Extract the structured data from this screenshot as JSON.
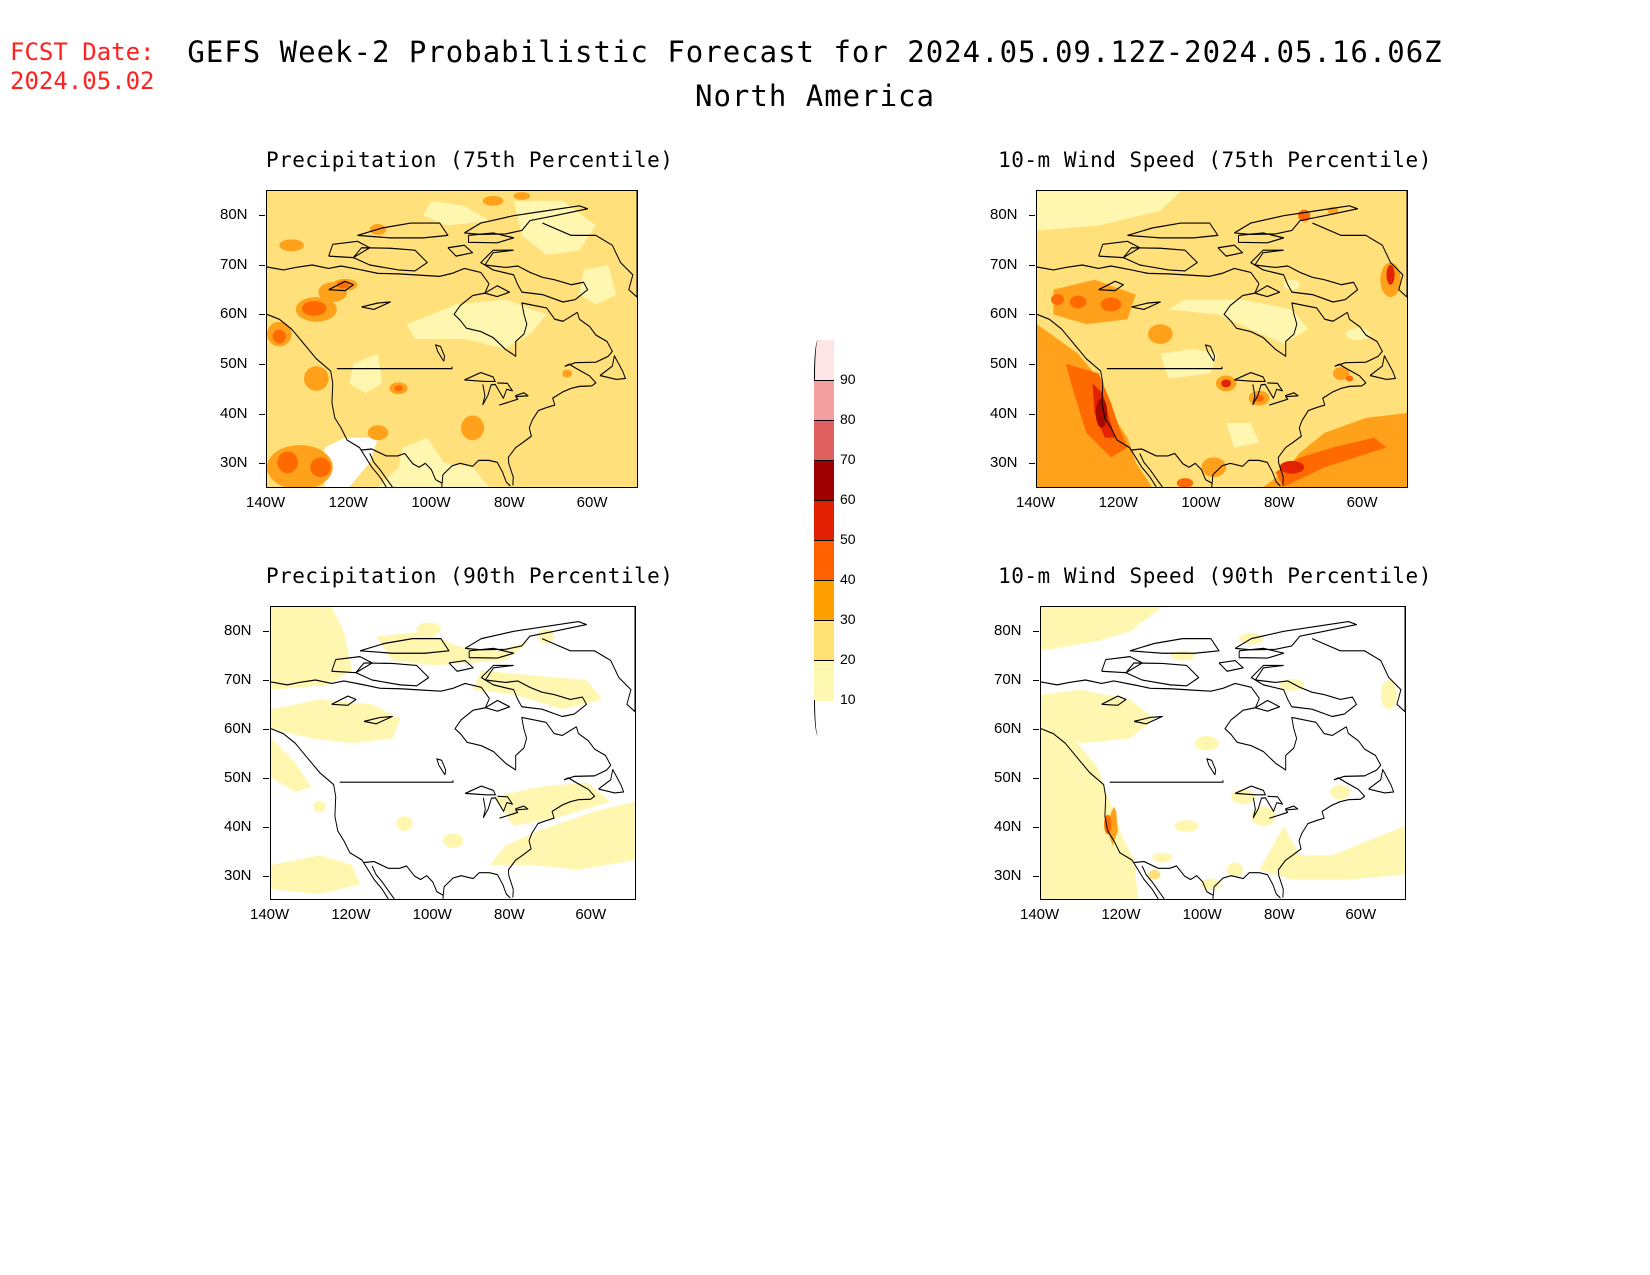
{
  "header": {
    "fcst_line1": "FCST Date:",
    "fcst_line2": "2024.05.02",
    "title_line1": "GEFS Week-2 Probabilistic Forecast for 2024.05.09.12Z-2024.05.16.06Z",
    "title_line2": "North America"
  },
  "panels": [
    {
      "title": "Precipitation (75th Percentile)",
      "dominant_level": "10-20 / 20-30 with scattered 30-40 and 40-50"
    },
    {
      "title": "10-m Wind Speed (75th Percentile)",
      "dominant_level": "10-30 with 30-60 along Pacific coast and western Atlantic"
    },
    {
      "title": "Precipitation (90th Percentile)",
      "dominant_level": "mostly below 10 with 10-20 patches"
    },
    {
      "title": "10-m Wind Speed (90th Percentile)",
      "dominant_level": "mostly below 10 with 10-20 patches, 30-40 off California"
    }
  ],
  "axes": {
    "lat_labels": [
      "80N",
      "70N",
      "60N",
      "50N",
      "40N",
      "30N"
    ],
    "lon_labels": [
      "140W",
      "120W",
      "100W",
      "80W",
      "60W"
    ]
  },
  "colorbar": {
    "labels": [
      "90",
      "80",
      "70",
      "60",
      "50",
      "40",
      "30",
      "20",
      "10"
    ],
    "colors": [
      "#ffe6e6",
      "#f4a0a0",
      "#e06060",
      "#a00000",
      "#e02000",
      "#ff6000",
      "#ffa000",
      "#ffe070",
      "#fff8b0"
    ]
  },
  "palette": {
    "c10": "#fff7b0",
    "c20": "#ffe07a",
    "c30": "#ffa11a",
    "c40": "#ff6a00",
    "c50": "#e32300",
    "c60": "#a80a00",
    "coast": "#000000",
    "title_red": "#ff2020"
  }
}
